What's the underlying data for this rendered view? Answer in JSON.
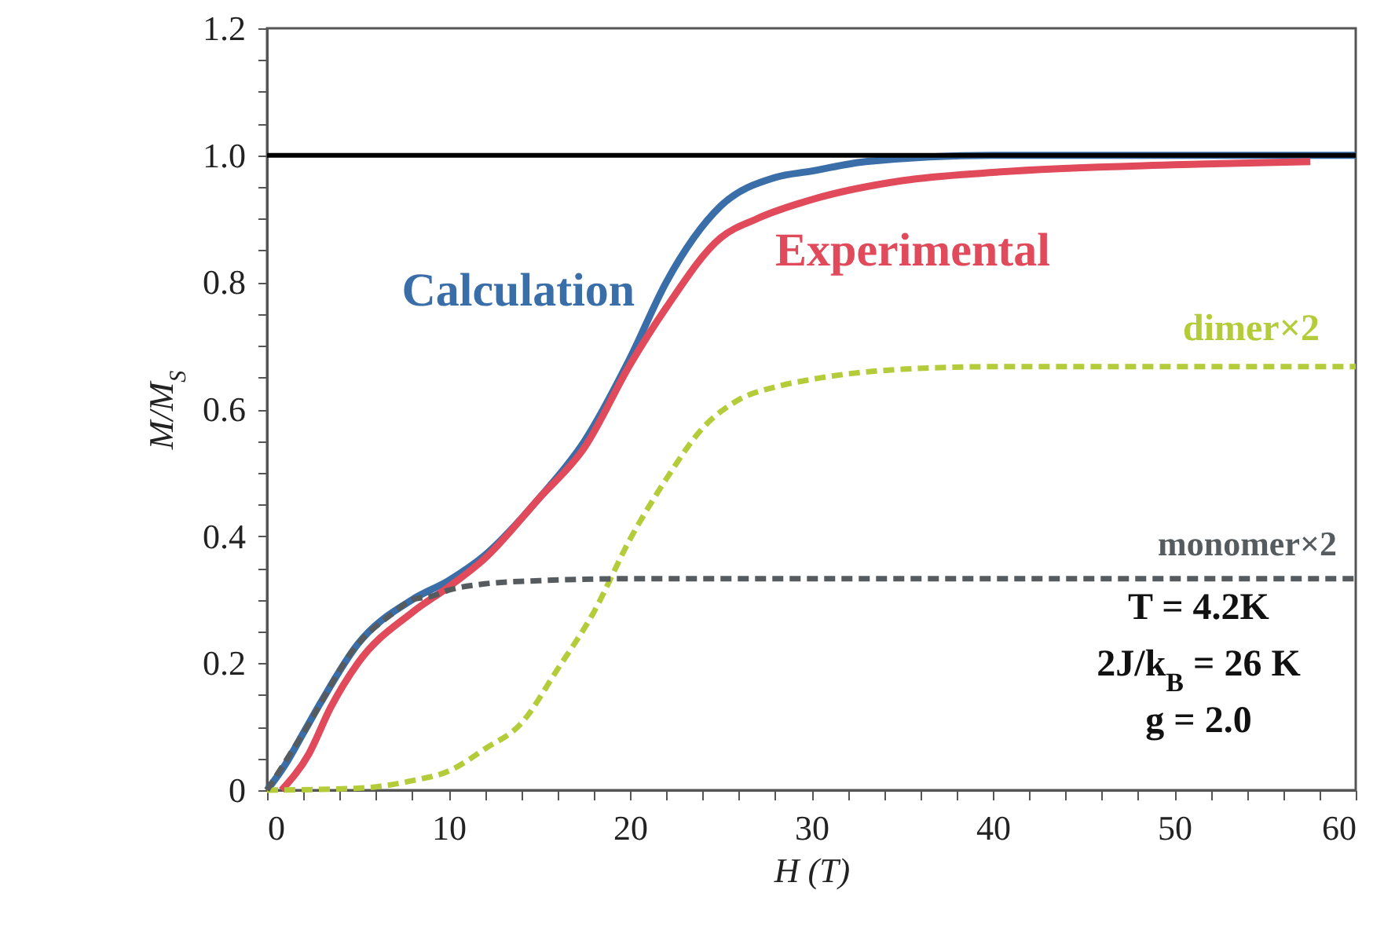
{
  "chart_data": {
    "type": "line",
    "xlabel": "H (T)",
    "ylabel": "M/M$_{S}$",
    "xlim": [
      0,
      60
    ],
    "ylim": [
      0,
      1.2
    ],
    "xticks": [
      0,
      {
        "value": 2,
        "label": null
      },
      {
        "value": 4,
        "label": null
      },
      {
        "value": 6,
        "label": null
      },
      {
        "value": 8,
        "label": null
      },
      10,
      {
        "value": 12,
        "label": null
      },
      {
        "value": 14,
        "label": null
      },
      {
        "value": 16,
        "label": null
      },
      {
        "value": 18,
        "label": null
      },
      20,
      {
        "value": 22,
        "label": null
      },
      {
        "value": 24,
        "label": null
      },
      {
        "value": 26,
        "label": null
      },
      {
        "value": 28,
        "label": null
      },
      30,
      {
        "value": 32,
        "label": null
      },
      {
        "value": 34,
        "label": null
      },
      {
        "value": 36,
        "label": null
      },
      {
        "value": 38,
        "label": null
      },
      40,
      {
        "value": 42,
        "label": null
      },
      {
        "value": 44,
        "label": null
      },
      {
        "value": 46,
        "label": null
      },
      {
        "value": 48,
        "label": null
      },
      50,
      {
        "value": 52,
        "label": null
      },
      {
        "value": 54,
        "label": null
      },
      {
        "value": 56,
        "label": null
      },
      {
        "value": 58,
        "label": null
      },
      60
    ],
    "yticks": [
      0,
      {
        "value": 0.05,
        "label": null
      },
      {
        "value": 0.1,
        "label": null
      },
      {
        "value": 0.15,
        "label": null
      },
      0.2,
      {
        "value": 0.25,
        "label": null
      },
      {
        "value": 0.3,
        "label": null
      },
      {
        "value": 0.35,
        "label": null
      },
      0.4,
      {
        "value": 0.45,
        "label": null
      },
      {
        "value": 0.5,
        "label": null
      },
      {
        "value": 0.55,
        "label": null
      },
      0.6,
      {
        "value": 0.65,
        "label": null
      },
      {
        "value": 0.7,
        "label": null
      },
      {
        "value": 0.75,
        "label": null
      },
      0.8,
      {
        "value": 0.85,
        "label": null
      },
      {
        "value": 0.9,
        "label": null
      },
      {
        "value": 0.95,
        "label": null
      },
      {
        "value": 1,
        "label": "1.0"
      },
      {
        "value": 1.05,
        "label": null
      },
      {
        "value": 1.1,
        "label": null
      },
      {
        "value": 1.15,
        "label": null
      },
      1.2
    ],
    "grid": false,
    "legend": false,
    "marker": "none",
    "series": [
      {
        "name": "Calculation",
        "color": "#3a6ea8",
        "line_style": "solid",
        "x": [
          0,
          1,
          2,
          3,
          5,
          8,
          10,
          12,
          15,
          17.5,
          20,
          22,
          25,
          28,
          30,
          33,
          40,
          60
        ],
        "values": [
          0,
          0.04,
          0.09,
          0.14,
          0.23,
          0.3,
          0.33,
          0.37,
          0.46,
          0.55,
          0.68,
          0.8,
          0.92,
          0.965,
          0.975,
          0.99,
          1.0,
          1.0
        ]
      },
      {
        "name": "Experimental",
        "color": "#e04a5a",
        "line_style": "solid",
        "x": [
          0.8,
          2.3,
          3.5,
          5,
          8,
          10,
          12,
          15,
          17.5,
          20,
          22,
          25,
          27,
          30,
          35,
          40,
          50,
          57.5
        ],
        "values": [
          0,
          0.057,
          0.13,
          0.2,
          0.28,
          0.32,
          0.365,
          0.46,
          0.54,
          0.67,
          0.76,
          0.87,
          0.9,
          0.93,
          0.96,
          0.973,
          0.985,
          0.99
        ]
      },
      {
        "name": "dimer×2",
        "color": "#b5cc3a",
        "line_style": "dashed",
        "x": [
          0,
          5,
          8,
          10,
          12,
          14,
          16,
          18,
          20,
          22,
          24,
          26,
          28,
          30,
          35,
          40,
          60
        ],
        "values": [
          0,
          0.003,
          0.015,
          0.03,
          0.065,
          0.105,
          0.19,
          0.28,
          0.395,
          0.49,
          0.57,
          0.615,
          0.635,
          0.647,
          0.663,
          0.667,
          0.667
        ]
      },
      {
        "name": "monomer×2",
        "color": "#555b5e",
        "line_style": "dashed",
        "x": [
          0,
          2,
          5,
          7,
          8,
          9,
          10,
          12,
          15,
          20,
          30,
          60
        ],
        "values": [
          0,
          0.09,
          0.23,
          0.28,
          0.3,
          0.305,
          0.315,
          0.325,
          0.33,
          0.333,
          0.333,
          0.333
        ]
      }
    ],
    "ref_lines": [
      {
        "axis": "y",
        "value": 1.0,
        "color": "#000000"
      }
    ],
    "annotations": [
      "T = 4.2K",
      "2J/k$_{B}$ = 26 K",
      "g = 2.0"
    ]
  }
}
